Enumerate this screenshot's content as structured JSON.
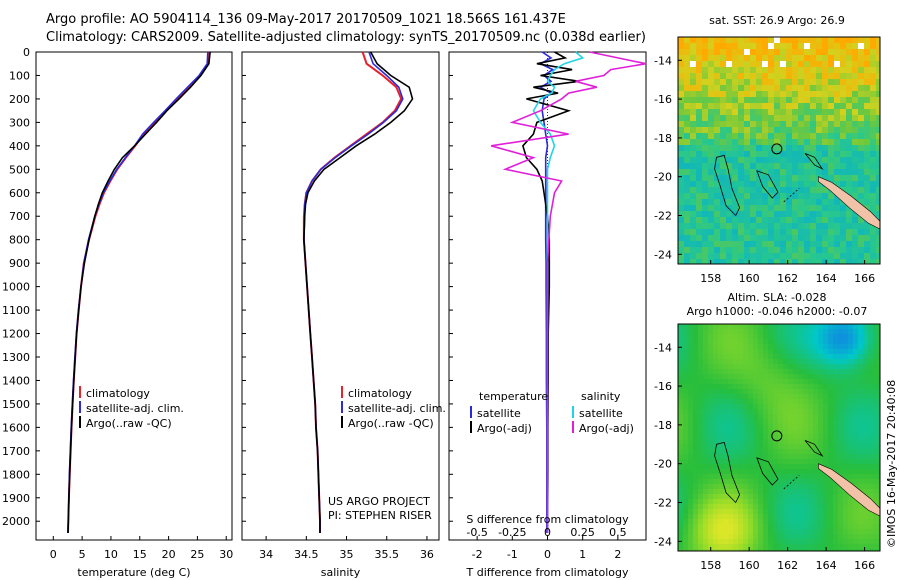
{
  "header": {
    "line1": "Argo profile: AO 5904114_136 09-May-2017 20170509_1021 18.566S 161.437E",
    "line2": "Climatology: CARS2009. Satellite-adjusted climatology: synTS_20170509.nc (0.038d earlier)"
  },
  "side_label": "©IMOS 16-May-2017 20:40:08",
  "colors": {
    "clim": "#e8202a",
    "sat": "#2a2ad8",
    "argo": "#000000",
    "sal_sat": "#22d4e6",
    "sal_argo": "#e020d8",
    "land": "#f2c2a8"
  },
  "chart_data": [
    {
      "type": "line",
      "id": "temperature",
      "xlabel": "temperature (deg C)",
      "ylabel": "",
      "xlim": [
        -3,
        31
      ],
      "ylim": [
        0,
        2080
      ],
      "xticks": [
        0,
        5,
        10,
        15,
        20,
        25,
        30
      ],
      "yticks": [
        0,
        100,
        200,
        300,
        400,
        500,
        600,
        700,
        800,
        900,
        1000,
        1100,
        1200,
        1300,
        1400,
        1500,
        1600,
        1700,
        1800,
        1900,
        2000
      ],
      "depth": [
        0,
        50,
        100,
        150,
        200,
        250,
        300,
        350,
        400,
        450,
        500,
        550,
        600,
        650,
        700,
        800,
        900,
        1000,
        1100,
        1200,
        1300,
        1400,
        1500,
        1600,
        1700,
        1800,
        1900,
        2000,
        2050
      ],
      "legend": [
        "climatology",
        "satellite-adj. clim.",
        "Argo(..raw -QC)"
      ],
      "series": [
        {
          "name": "climatology",
          "values": [
            27,
            26.9,
            25.5,
            23.5,
            21.5,
            19.6,
            17.6,
            15.7,
            14.2,
            12.6,
            11.1,
            9.9,
            8.8,
            8,
            7.3,
            6.2,
            5.3,
            4.8,
            4.4,
            4.05,
            3.8,
            3.55,
            3.35,
            3.15,
            3,
            2.85,
            2.7,
            2.6,
            2.55
          ]
        },
        {
          "name": "satellite-adj. clim.",
          "values": [
            26.8,
            26.7,
            25.3,
            23.3,
            21.3,
            19.4,
            17.4,
            15.5,
            14.1,
            12.5,
            11,
            9.8,
            8.7,
            7.9,
            7.2,
            6.1,
            5.3,
            4.8,
            4.35,
            4,
            3.75,
            3.5,
            3.3,
            3.1,
            2.95,
            2.8,
            2.7,
            2.6,
            2.55
          ]
        },
        {
          "name": "Argo(..raw -QC)",
          "values": [
            27.2,
            27,
            25.6,
            23.8,
            21.8,
            19.7,
            17.9,
            16,
            14.1,
            12,
            10.6,
            9.5,
            8.5,
            7.8,
            7.2,
            6.2,
            5.4,
            4.8,
            4.4,
            4.05,
            3.8,
            3.55,
            3.35,
            3.15,
            3,
            2.85,
            2.7,
            2.6,
            2.55
          ]
        }
      ]
    },
    {
      "type": "line",
      "id": "salinity",
      "xlabel": "salinity",
      "ylabel": "",
      "xlim": [
        33.7,
        36.15
      ],
      "ylim": [
        0,
        2080
      ],
      "xticks": [
        34,
        34.5,
        35,
        35.5,
        36
      ],
      "xticklabels": [
        "34",
        "34.5",
        "35",
        "35.5",
        "36"
      ],
      "depth": [
        0,
        50,
        100,
        150,
        200,
        250,
        300,
        350,
        400,
        450,
        500,
        550,
        600,
        650,
        700,
        800,
        900,
        1000,
        1100,
        1200,
        1300,
        1400,
        1500,
        1600,
        1700,
        1800,
        1900,
        2000,
        2050
      ],
      "legend": [
        "climatology",
        "satellite-adj. clim.",
        "Argo(..raw -QC)"
      ],
      "annotation": [
        "US ARGO PROJECT",
        "PI: STEPHEN RISER"
      ],
      "series": [
        {
          "name": "climatology",
          "values": [
            35.2,
            35.25,
            35.45,
            35.62,
            35.68,
            35.6,
            35.45,
            35.25,
            35.05,
            34.85,
            34.68,
            34.57,
            34.5,
            34.48,
            34.47,
            34.47,
            34.49,
            34.51,
            34.53,
            34.55,
            34.57,
            34.59,
            34.61,
            34.62,
            34.64,
            34.65,
            34.66,
            34.67,
            34.67
          ]
        },
        {
          "name": "satellite-adj. clim.",
          "values": [
            35.28,
            35.33,
            35.5,
            35.65,
            35.7,
            35.62,
            35.46,
            35.27,
            35.06,
            34.86,
            34.68,
            34.57,
            34.5,
            34.48,
            34.48,
            34.47,
            34.49,
            34.51,
            34.53,
            34.55,
            34.57,
            34.59,
            34.61,
            34.62,
            34.64,
            34.65,
            34.66,
            34.67,
            34.67
          ]
        },
        {
          "name": "Argo(..raw -QC)",
          "values": [
            35.3,
            35.38,
            35.55,
            35.78,
            35.82,
            35.72,
            35.55,
            35.35,
            35.12,
            34.92,
            34.72,
            34.6,
            34.52,
            34.49,
            34.48,
            34.47,
            34.49,
            34.51,
            34.53,
            34.55,
            34.57,
            34.59,
            34.61,
            34.62,
            34.64,
            34.65,
            34.66,
            34.67,
            34.67
          ]
        }
      ]
    },
    {
      "type": "line",
      "id": "difference",
      "xlabel": "T difference from climatology",
      "xlabel_top": "S difference from climatology",
      "ylabel": "",
      "xlim": [
        -2.8,
        2.8
      ],
      "ylim": [
        0,
        2080
      ],
      "xticks": [
        -2,
        -1,
        0,
        1,
        2
      ],
      "xticklabels": [
        "-2",
        "-1",
        "0",
        "1",
        "2"
      ],
      "sticks": [
        -0.5,
        -0.25,
        0,
        0.25,
        0.5
      ],
      "sticklabels": [
        "-0.5",
        "-0.25",
        "0",
        "0.25",
        "0.5"
      ],
      "legend_temperature": [
        "temperature",
        "satellite",
        "Argo(-adj)"
      ],
      "legend_salinity": [
        "salinity",
        "satellite",
        "Argo(-adj)"
      ],
      "depth": [
        0,
        25,
        50,
        75,
        100,
        125,
        150,
        175,
        200,
        250,
        300,
        350,
        400,
        450,
        500,
        550,
        600,
        700,
        800,
        900,
        1000,
        1200,
        1400,
        1600,
        1800,
        2050
      ],
      "series": [
        {
          "name": "T satellite",
          "values": [
            -0.15,
            0.1,
            -0.2,
            0.15,
            -0.1,
            0.1,
            -0.2,
            0.1,
            -0.1,
            -0.15,
            -0.1,
            -0.05,
            0,
            -0.05,
            -0.05,
            -0.05,
            -0.05,
            -0.05,
            -0.05,
            -0.04,
            -0.04,
            -0.03,
            -0.03,
            -0.02,
            -0.02,
            -0.02
          ]
        },
        {
          "name": "T Argo",
          "values": [
            0.2,
            0.5,
            -0.3,
            0.7,
            -0.2,
            0.9,
            -0.4,
            0.3,
            -0.6,
            0.6,
            -0.3,
            -0.4,
            -0.7,
            -0.6,
            -0.3,
            -0.15,
            -0.1,
            0,
            0.05,
            0.05,
            0.05,
            0.02,
            0.02,
            0.01,
            0.01,
            0
          ]
        },
        {
          "name": "S satellite",
          "values": [
            0.2,
            0.25,
            0.12,
            0.05,
            0.02,
            0,
            0.05,
            0.03,
            -0.05,
            -0.1,
            -0.05,
            0.02,
            0.05,
            0.02,
            0,
            0,
            0,
            0,
            0,
            0,
            0,
            0,
            0,
            0,
            0,
            0
          ]
        },
        {
          "name": "S Argo",
          "values": [
            0.3,
            0.5,
            0.7,
            0.45,
            0.4,
            0.2,
            0.35,
            0.15,
            0.1,
            -0.05,
            -0.25,
            0.15,
            -0.4,
            -0.1,
            -0.3,
            0.1,
            0.05,
            0.02,
            0.01,
            0,
            0,
            0,
            0,
            0,
            0,
            0
          ]
        }
      ]
    },
    {
      "type": "heatmap",
      "id": "sst_map",
      "title": "sat. SST: 26.9 Argo: 26.9",
      "xlim": [
        156.3,
        166.8
      ],
      "ylim": [
        -24.5,
        -12.8
      ],
      "xticks": [
        158,
        160,
        162,
        164,
        166
      ],
      "yticks": [
        -14,
        -16,
        -18,
        -20,
        -22,
        -24
      ],
      "xticklabels": [
        "158",
        "160",
        "162",
        "164",
        "166"
      ],
      "yticklabels": [
        "-14",
        "-16",
        "-18",
        "-20",
        "-22",
        "-24"
      ],
      "argo_position": {
        "lon": 161.437,
        "lat": -18.566
      }
    },
    {
      "type": "heatmap",
      "id": "sla_map",
      "title": "Altim. SLA: -0.028",
      "subtitle": "Argo h1000: -0.046 h2000: -0.07",
      "xlim": [
        156.3,
        166.8
      ],
      "ylim": [
        -24.5,
        -12.8
      ],
      "xticks": [
        158,
        160,
        162,
        164,
        166
      ],
      "yticks": [
        -14,
        -16,
        -18,
        -20,
        -22,
        -24
      ],
      "xticklabels": [
        "158",
        "160",
        "162",
        "164",
        "166"
      ],
      "yticklabels": [
        "-14",
        "-16",
        "-18",
        "-20",
        "-22",
        "-24"
      ],
      "argo_position": {
        "lon": 161.437,
        "lat": -18.566
      }
    }
  ]
}
